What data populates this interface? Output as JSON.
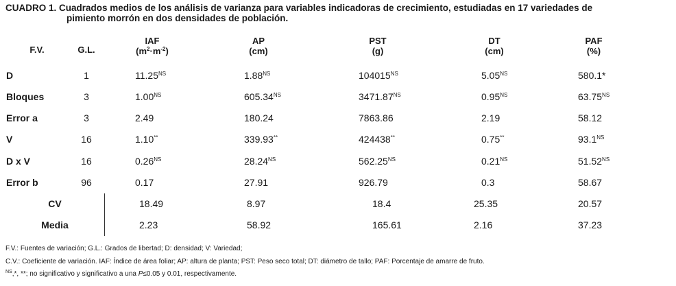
{
  "title": {
    "line1": "CUADRO 1. Cuadrados medios de los análisis de varianza para variables indicadoras de crecimiento, estudiadas en 17 variedades de",
    "line2": "pimiento morrón en dos densidades de población."
  },
  "headers": {
    "fv": "F.V.",
    "gl": "G.L.",
    "iaf": "IAF",
    "iaf_unit_a": "(m",
    "iaf_unit_b": "·m",
    "iaf_unit_c": ")",
    "iaf_exp1": "2",
    "iaf_exp2": "-2",
    "ap": "AP",
    "ap_unit": "(cm)",
    "pst": "PST",
    "pst_unit": "(g)",
    "dt": "DT",
    "dt_unit": "(cm)",
    "paf": "PAF",
    "paf_unit": "(%)"
  },
  "rows": [
    {
      "fv": "D",
      "gl": "1",
      "iaf": "11.25",
      "iaf_sig": "NS",
      "ap": "1.88",
      "ap_sig": "NS",
      "pst": "104015",
      "pst_sig": "NS",
      "dt": "5.05",
      "dt_sig": "NS",
      "paf": "580.1*",
      "paf_sig": ""
    },
    {
      "fv": "Bloques",
      "gl": "3",
      "iaf": "1.00",
      "iaf_sig": "NS",
      "ap": "605.34",
      "ap_sig": "NS",
      "pst": "3471.87",
      "pst_sig": "NS",
      "dt": "0.95",
      "dt_sig": "NS",
      "paf": "63.75",
      "paf_sig": "NS"
    },
    {
      "fv": "Error a",
      "gl": "3",
      "iaf": "2.49",
      "iaf_sig": "",
      "ap": "180.24",
      "ap_sig": "",
      "pst": "7863.86",
      "pst_sig": "",
      "dt": "2.19",
      "dt_sig": "",
      "paf": "58.12",
      "paf_sig": ""
    },
    {
      "fv": "V",
      "gl": "16",
      "iaf": "1.10",
      "iaf_sig": "**",
      "ap": "339.93",
      "ap_sig": "**",
      "pst": "424438",
      "pst_sig": "**",
      "dt": "0.75",
      "dt_sig": "**",
      "paf": "93.1",
      "paf_sig": "NS"
    },
    {
      "fv": "D x V",
      "gl": "16",
      "iaf": "0.26",
      "iaf_sig": "NS",
      "ap": "28.24",
      "ap_sig": "NS",
      "pst": "562.25",
      "pst_sig": "NS",
      "dt": "0.21",
      "dt_sig": "NS",
      "paf": "51.52",
      "paf_sig": "NS"
    },
    {
      "fv": "Error b",
      "gl": "96",
      "iaf": "0.17",
      "iaf_sig": "",
      "ap": "27.91",
      "ap_sig": "",
      "pst": "926.79",
      "pst_sig": "",
      "dt": "0.3",
      "dt_sig": "",
      "paf": "58.67",
      "paf_sig": ""
    }
  ],
  "summary": [
    {
      "label": "CV",
      "iaf": "18.49",
      "ap": "8.97",
      "pst": "18.4",
      "dt": "25.35",
      "paf": "20.57"
    },
    {
      "label": "Media",
      "iaf": "2.23",
      "ap": "58.92",
      "pst": "165.61",
      "dt": "2.16",
      "paf": "37.23"
    }
  ],
  "notes": {
    "n1": "F.V.: Fuentes de variación; G.L.: Grados de libertad; D: densidad; V: Variedad;",
    "n2": "C.V.: Coeficiente de variación. IAF: Índice de área foliar; AP: altura de planta; PST: Peso seco total; DT: diámetro de tallo; PAF: Porcentaje de amarre de fruto.",
    "n3_sup": "NS",
    "n3_a": ",*, **; no significativo y significativo a una ",
    "n3_p": "P",
    "n3_b": "≤0.05 y 0.01, respectivamente."
  }
}
